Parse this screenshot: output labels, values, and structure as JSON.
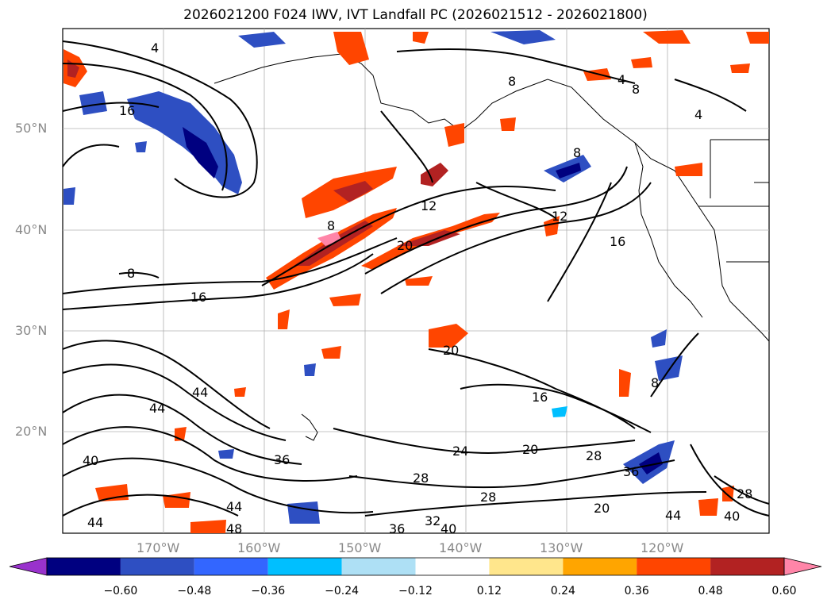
{
  "title": "2026021200 F024 IWV, IVT Landfall PC (2026021512 - 2026021800)",
  "lat_labels": [
    "50°N",
    "40°N",
    "30°N",
    "20°N"
  ],
  "lon_labels": [
    "170°W",
    "160°W",
    "150°W",
    "140°W",
    "130°W",
    "120°W"
  ],
  "contour_labels": [
    "4",
    "16",
    "8",
    "8",
    "12",
    "20",
    "8",
    "16",
    "12",
    "16",
    "8",
    "4",
    "4",
    "8",
    "44",
    "44",
    "40",
    "36",
    "24",
    "20",
    "28",
    "28",
    "20",
    "16",
    "36",
    "28",
    "32",
    "36",
    "40",
    "44",
    "44",
    "48",
    "44",
    "40",
    "28",
    "20",
    "8"
  ],
  "colorbar": {
    "colors": [
      "#9932cc",
      "#000080",
      "#2e4fc2",
      "#3366ff",
      "#00bfff",
      "#aee0f5",
      "#ffffff",
      "#ffe68c",
      "#ffa500",
      "#ff4500",
      "#b22222",
      "#ff85a8"
    ],
    "ticks": [
      "−0.60",
      "−0.48",
      "−0.36",
      "−0.24",
      "−0.12",
      "0.12",
      "0.24",
      "0.36",
      "0.48",
      "0.60"
    ]
  }
}
